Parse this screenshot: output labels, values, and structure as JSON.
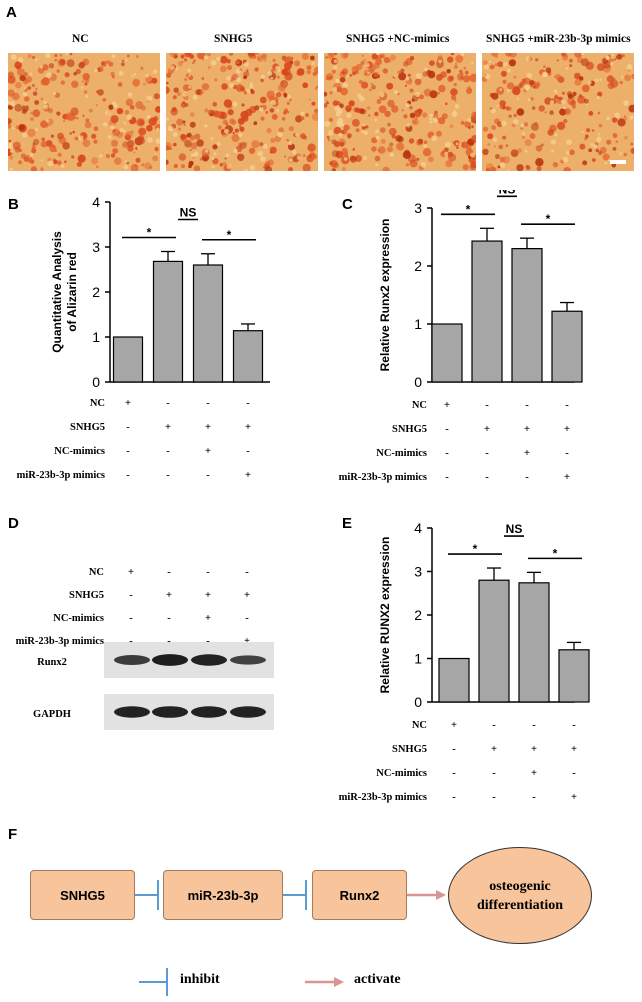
{
  "panels": {
    "A": "A",
    "B": "B",
    "C": "C",
    "D": "D",
    "E": "E",
    "F": "F"
  },
  "panel_a": {
    "titles": [
      "NC",
      "SNHG5",
      "SNHG5 +NC-mimics",
      "SNHG5 +miR-23b-3p mimics"
    ],
    "stain_density": [
      0.45,
      0.6,
      0.58,
      0.35
    ]
  },
  "conditions": {
    "rows": [
      "NC",
      "SNHG5",
      "NC-mimics",
      "miR-23b-3p mimics"
    ],
    "matrix": [
      [
        "+",
        "-",
        "-",
        "-"
      ],
      [
        "-",
        "+",
        "+",
        "+"
      ],
      [
        "-",
        "-",
        "+",
        "-"
      ],
      [
        "-",
        "-",
        "-",
        "+"
      ]
    ]
  },
  "chart_data": [
    {
      "type": "bar",
      "panel": "B",
      "ylabel": "Quantitative Analysis of Alizarin red",
      "ylim": [
        0,
        4
      ],
      "yticks": [
        0,
        1,
        2,
        3,
        4
      ],
      "values": [
        1.0,
        2.68,
        2.6,
        1.14
      ],
      "errors": [
        0,
        0.22,
        0.25,
        0.15
      ],
      "sig": [
        {
          "from": 0,
          "to": 1,
          "text": "*"
        },
        {
          "from": 1,
          "to": 2,
          "text": "NS"
        },
        {
          "from": 2,
          "to": 3,
          "text": "*"
        }
      ]
    },
    {
      "type": "bar",
      "panel": "C",
      "ylabel": "Relative Runx2 expression",
      "ylim": [
        0,
        3
      ],
      "yticks": [
        0,
        1,
        2,
        3
      ],
      "values": [
        1.0,
        2.43,
        2.3,
        1.22
      ],
      "errors": [
        0,
        0.22,
        0.18,
        0.15
      ],
      "sig": [
        {
          "from": 0,
          "to": 1,
          "text": "*"
        },
        {
          "from": 1,
          "to": 2,
          "text": "NS"
        },
        {
          "from": 2,
          "to": 3,
          "text": "*"
        }
      ]
    },
    {
      "type": "bar",
      "panel": "E",
      "ylabel": "Relative RUNX2 expression",
      "ylim": [
        0,
        4
      ],
      "yticks": [
        0,
        1,
        2,
        3,
        4
      ],
      "values": [
        1.0,
        2.8,
        2.74,
        1.2
      ],
      "errors": [
        0,
        0.28,
        0.24,
        0.17
      ],
      "sig": [
        {
          "from": 0,
          "to": 1,
          "text": "*"
        },
        {
          "from": 1,
          "to": 2,
          "text": "NS"
        },
        {
          "from": 2,
          "to": 3,
          "text": "*"
        }
      ]
    }
  ],
  "blot": {
    "bands": [
      "Runx2",
      "GAPDH"
    ],
    "runx2_intensity": [
      0.65,
      0.95,
      0.9,
      0.55
    ],
    "gapdh_intensity": [
      0.9,
      0.92,
      0.9,
      0.9
    ]
  },
  "pathway": {
    "nodes": [
      "SNHG5",
      "miR-23b-3p",
      "Runx2"
    ],
    "target_line1": "osteogenic",
    "target_line2": "differentiation",
    "legend_inhibit": "inhibit",
    "legend_activate": "activate",
    "inhibit_color": "#5b9bd5",
    "activate_color": "#d99594",
    "node_fill": "#f7c49b"
  }
}
